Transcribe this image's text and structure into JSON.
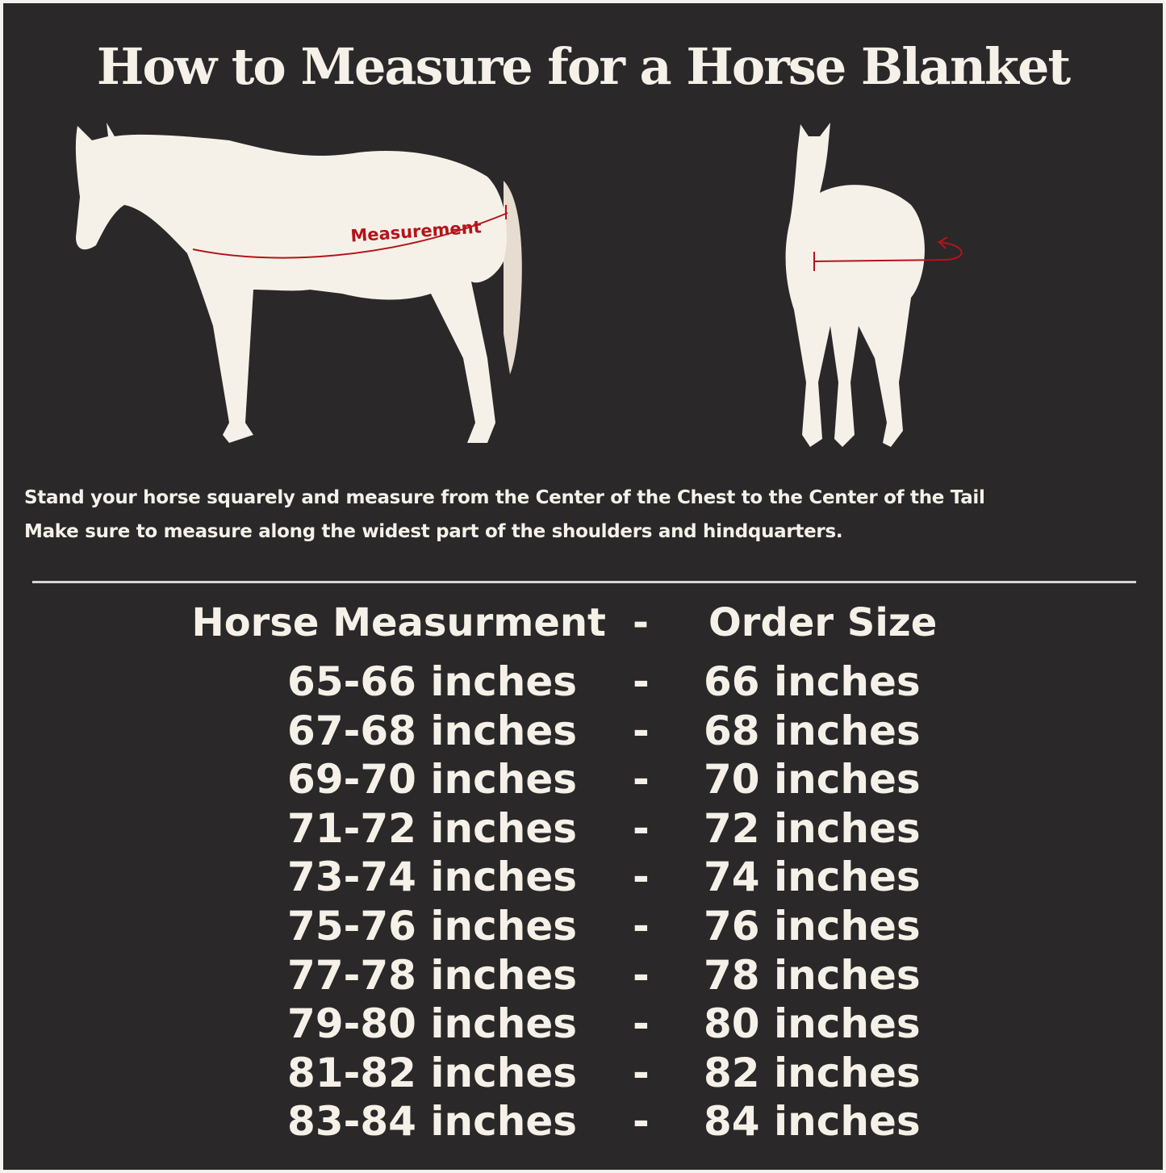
{
  "title": "How to Measure for a Horse Blanket",
  "diagram": {
    "side_label": "Measurement",
    "measure_color": "#b3141b",
    "horse_color": "#f6f1e8",
    "tail_color": "#e6dccf"
  },
  "instructions": [
    "Stand your horse squarely and measure from the Center of the Chest to the Center of the Tail",
    "Make sure to measure along the widest part of the shoulders and hindquarters."
  ],
  "table": {
    "headers": [
      "Horse Measurment",
      "-",
      "Order Size"
    ],
    "rows": [
      [
        "65-66 inches",
        "-",
        "66 inches"
      ],
      [
        "67-68 inches",
        "-",
        "68 inches"
      ],
      [
        "69-70 inches",
        "-",
        "70 inches"
      ],
      [
        "71-72 inches",
        "-",
        "72 inches"
      ],
      [
        "73-74 inches",
        "-",
        "74 inches"
      ],
      [
        "75-76 inches",
        "-",
        "76 inches"
      ],
      [
        "77-78 inches",
        "-",
        "78 inches"
      ],
      [
        "79-80 inches",
        "-",
        "80 inches"
      ],
      [
        "81-82 inches",
        "-",
        "82 inches"
      ],
      [
        "83-84 inches",
        "-",
        "84 inches"
      ]
    ]
  }
}
